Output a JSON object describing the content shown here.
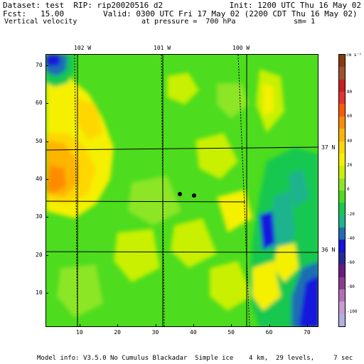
{
  "header": {
    "dataset": "Dataset: test  RIP: rip20020516 d2",
    "init": "Init: 1200 UTC Thu 16 May 02",
    "fcst": "Fcst:   15.00",
    "valid": "Valid: 0300 UTC Fri 17 May 02 (2200 CDT Thu 16 May 02)",
    "field": "Vertical velocity",
    "pressure": "at pressure =  700 hPa",
    "smoothing": "sm= 1"
  },
  "map": {
    "longitude_labels": [
      "102 W",
      "101 W",
      "100 W"
    ],
    "latitude_labels": [
      "37 N",
      "36 N"
    ],
    "x_ticks": [
      "10",
      "20",
      "30",
      "40",
      "50",
      "60",
      "70"
    ],
    "y_ticks": [
      "10",
      "20",
      "30",
      "40",
      "50",
      "60",
      "70"
    ],
    "x_range": [
      1,
      73
    ],
    "y_range": [
      1,
      73
    ]
  },
  "legend": {
    "units": "cm s⁻¹",
    "labels": [
      "80",
      "60",
      "40",
      "20",
      "0",
      "-20",
      "-40",
      "-60",
      "-80",
      "-100"
    ],
    "colors": [
      "#8b3a0e",
      "#a0522d",
      "#c81e1e",
      "#e83030",
      "#ff5a00",
      "#ff8c00",
      "#ffb400",
      "#ffd700",
      "#f4f000",
      "#c8f000",
      "#8ce628",
      "#4ddc1e",
      "#18c850",
      "#1eb48c",
      "#1e6eb4",
      "#1414dc",
      "#282896",
      "#6a1a82",
      "#8c3c8c",
      "#b46eb4",
      "#c89bd0",
      "#b0b0e6"
    ]
  },
  "footer": {
    "model_info": "Model info: V3.5.0 No Cumulus Blackadar  Simple ice    4 km,  29 levels,     7 sec"
  }
}
